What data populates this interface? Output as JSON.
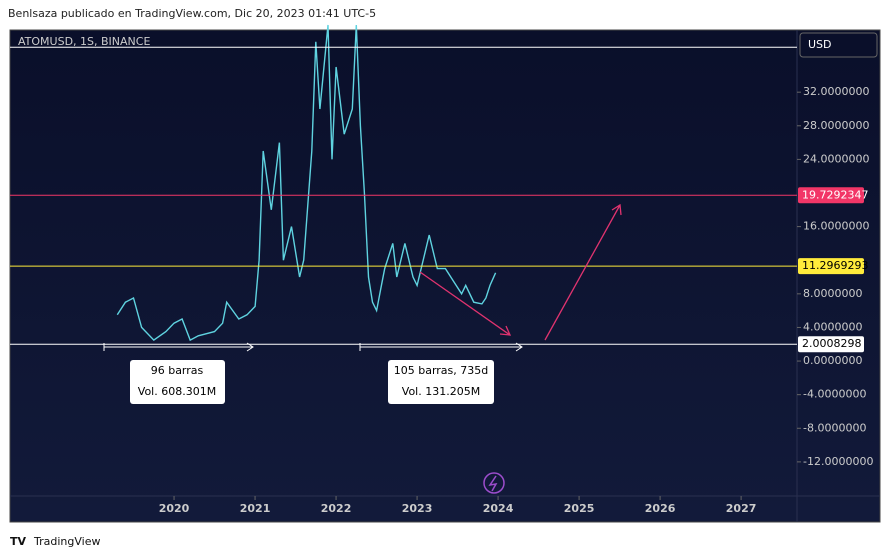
{
  "header": "Benlsaza publicado en TradingView.com, Dic 20, 2023 01:41 UTC-5",
  "footer": "TradingView",
  "chart_data": {
    "type": "line",
    "title": "ATOMUSD, 1S, BINANCE",
    "currency": "USD",
    "color": "#5fd3e0",
    "x": [
      2019.3,
      2019.4,
      2019.5,
      2019.6,
      2019.75,
      2019.9,
      2020.0,
      2020.1,
      2020.2,
      2020.3,
      2020.5,
      2020.6,
      2020.65,
      2020.8,
      2020.9,
      2021.0,
      2021.05,
      2021.1,
      2021.2,
      2021.3,
      2021.35,
      2021.45,
      2021.55,
      2021.6,
      2021.7,
      2021.75,
      2021.8,
      2021.9,
      2021.95,
      2022.0,
      2022.1,
      2022.2,
      2022.25,
      2022.3,
      2022.35,
      2022.4,
      2022.45,
      2022.5,
      2022.55,
      2022.6,
      2022.7,
      2022.75,
      2022.85,
      2022.95,
      2023.0,
      2023.1,
      2023.15,
      2023.25,
      2023.35,
      2023.45,
      2023.55,
      2023.6,
      2023.7,
      2023.8,
      2023.85,
      2023.9,
      2023.97
    ],
    "values": [
      5.5,
      7,
      7.5,
      4,
      2.5,
      3.5,
      4.5,
      5,
      2.5,
      3,
      3.5,
      4.5,
      7,
      5,
      5.5,
      6.5,
      12,
      25,
      18,
      26,
      12,
      16,
      10,
      12,
      25,
      38,
      30,
      40,
      24,
      35,
      27,
      30,
      40,
      28,
      20,
      10,
      7,
      6,
      8.5,
      11,
      14,
      10,
      14,
      10,
      9,
      13,
      15,
      11,
      11,
      9.5,
      8,
      9,
      7,
      6.8,
      7.5,
      9,
      10.5
    ],
    "xlim": [
      2017.975,
      2027.69
    ],
    "xticks": [
      2020,
      2021,
      2022,
      2023,
      2024,
      2025,
      2026,
      2027
    ],
    "ylim": [
      -16.06,
      39.4
    ],
    "yticks": [
      {
        "value": -12,
        "label": "-12.0000000"
      },
      {
        "value": -8,
        "label": "-8.0000000"
      },
      {
        "value": -4,
        "label": "-4.0000000"
      },
      {
        "value": 0,
        "label": "0.0000000"
      },
      {
        "value": 4,
        "label": "4.0000000"
      },
      {
        "value": 8,
        "label": "8.0000000"
      },
      {
        "value": 16,
        "label": "16.0000000"
      },
      {
        "value": 24,
        "label": "24.0000000"
      },
      {
        "value": 28,
        "label": "28.0000000"
      },
      {
        "value": 32,
        "label": "32.0000000"
      }
    ],
    "levels": [
      {
        "value": 37.35,
        "color": "#ffffff"
      },
      {
        "value": 19.7292347,
        "label": "19.7292347",
        "color": "#f23667"
      },
      {
        "value": 11.2969293,
        "label": "11.2969293",
        "color": "#ffeb3b"
      },
      {
        "value": 2.0008298,
        "label": "2.0008298",
        "color": "#ffffff"
      }
    ],
    "annotations": [
      [
        "96 barras",
        "Vol. 608.301M"
      ],
      [
        "105 barras, 735d",
        "Vol. 131.205M"
      ]
    ]
  }
}
